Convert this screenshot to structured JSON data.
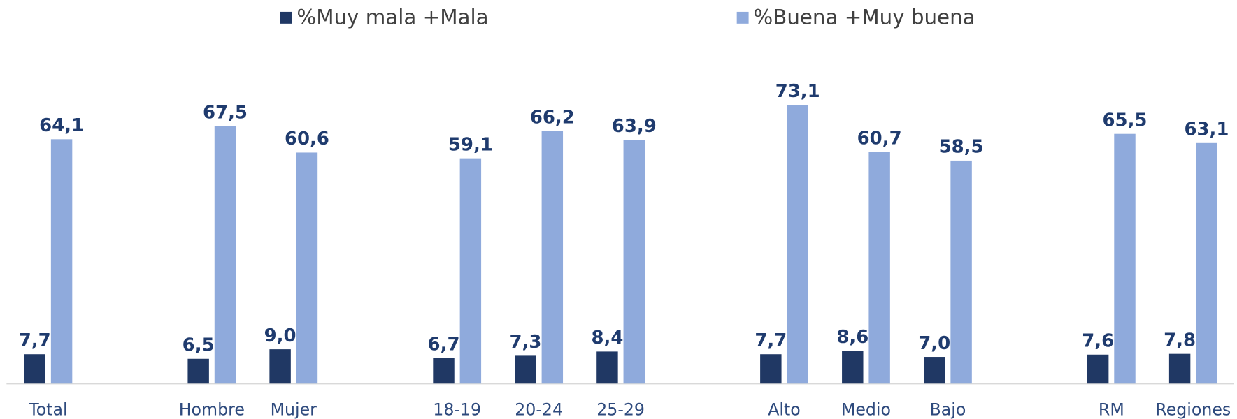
{
  "chart_data": {
    "type": "bar",
    "categories": [
      "Total",
      null,
      "Hombre",
      "Mujer",
      null,
      "18-19",
      "20-24",
      "25-29",
      null,
      "Alto",
      "Medio",
      "Bajo",
      null,
      "RM",
      "Regiones"
    ],
    "series": [
      {
        "name": "%Muy mala +Mala",
        "color": "#203864",
        "values": [
          7.7,
          null,
          6.5,
          9.0,
          null,
          6.7,
          7.3,
          8.4,
          null,
          7.7,
          8.6,
          7.0,
          null,
          7.6,
          7.8
        ],
        "value_labels": [
          "7,7",
          null,
          "6,5",
          "9,0",
          null,
          "6,7",
          "7,3",
          "8,4",
          null,
          "7,7",
          "8,6",
          "7,0",
          null,
          "7,6",
          "7,8"
        ]
      },
      {
        "name": "%Buena +Muy buena",
        "color": "#8faadc",
        "values": [
          64.1,
          null,
          67.5,
          60.6,
          null,
          59.1,
          66.2,
          63.9,
          null,
          73.1,
          60.7,
          58.5,
          null,
          65.5,
          63.1
        ],
        "value_labels": [
          "64,1",
          null,
          "67,5",
          "60,6",
          null,
          "59,1",
          "66,2",
          "63,9",
          null,
          "73,1",
          "60,7",
          "58,5",
          null,
          "65,5",
          "63,1"
        ]
      }
    ],
    "legend": "top"
  }
}
